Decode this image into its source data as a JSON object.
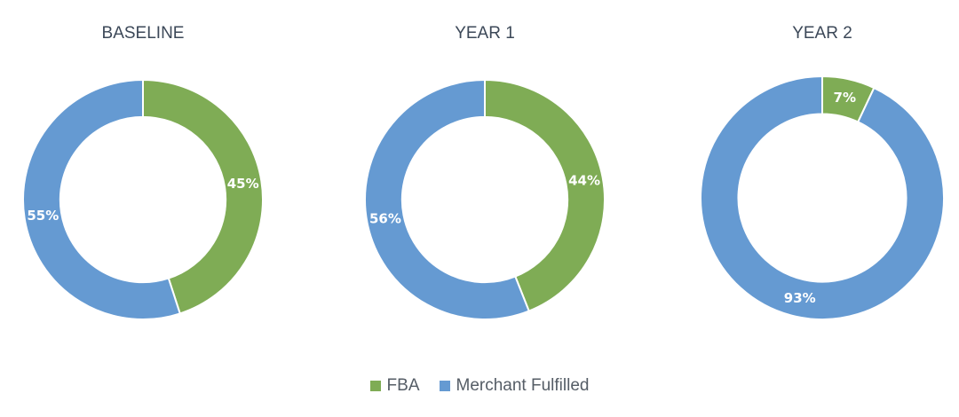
{
  "chart_data": [
    {
      "type": "pie",
      "title": "BASELINE",
      "categories": [
        "FBA",
        "Merchant Fulfilled"
      ],
      "values": [
        45,
        55
      ],
      "labels": [
        "45%",
        "55%"
      ]
    },
    {
      "type": "pie",
      "title": "YEAR 1",
      "categories": [
        "FBA",
        "Merchant Fulfilled"
      ],
      "values": [
        44,
        56
      ],
      "labels": [
        "44%",
        "56%"
      ]
    },
    {
      "type": "pie",
      "title": "YEAR 2",
      "categories": [
        "FBA",
        "Merchant Fulfilled"
      ],
      "values": [
        7,
        93
      ],
      "labels": [
        "7%",
        "93%"
      ]
    }
  ],
  "legend": {
    "placement": "bottom-center",
    "items": [
      {
        "label": "FBA",
        "color": "#7fac55"
      },
      {
        "label": "Merchant Fulfilled",
        "color": "#659ad2"
      }
    ]
  },
  "colors": {
    "FBA": "#7fac55",
    "Merchant Fulfilled": "#659ad2"
  }
}
